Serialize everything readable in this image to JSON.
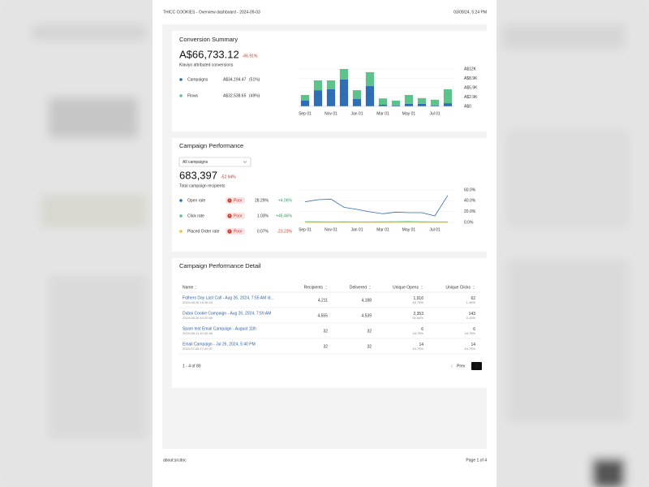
{
  "header": {
    "left": "THICC COOKIES - Overview dashboard - 2024-09-03",
    "right": "03/09/24, 5:24 PM"
  },
  "conversion_summary": {
    "title": "Conversion Summary",
    "total": "A$66,733.12",
    "change": "-66.91%",
    "subtitle": "Klaviyo attributed conversions",
    "chart_data": {
      "type": "bar",
      "stacked": true,
      "categories": [
        "Sep 01",
        null,
        "Nov 01",
        null,
        "Jan 01",
        null,
        "Mar 01",
        null,
        "May 01",
        null,
        "Jul 01",
        null
      ],
      "series": [
        {
          "name": "Campaigns",
          "total": "A$34,194.47",
          "share": "(51%)",
          "color": "#2f6db5",
          "values": [
            1800,
            5100,
            5400,
            8500,
            2300,
            6400,
            500,
            300,
            800,
            800,
            300,
            1000
          ]
        },
        {
          "name": "Flows",
          "total": "A$32,538.65",
          "share": "(49%)",
          "color": "#5cc38a",
          "values": [
            1800,
            3100,
            2800,
            3300,
            2800,
            4400,
            2000,
            1500,
            2800,
            1800,
            1800,
            4400
          ]
        }
      ],
      "ylim": [
        0,
        11800
      ],
      "yticks": [
        {
          "value": 0,
          "label": "A$0"
        },
        {
          "value": 2950,
          "label": "A$2.9K"
        },
        {
          "value": 5900,
          "label": "A$5.9K"
        },
        {
          "value": 8850,
          "label": "A$8.9K"
        },
        {
          "value": 11800,
          "label": "A$12K"
        }
      ],
      "grid": true
    }
  },
  "campaign_performance": {
    "title": "Campaign Performance",
    "filter": "All campaigns",
    "total": "683,397",
    "change": "-52.94%",
    "subtitle": "Total campaign recipients",
    "chart_data": {
      "type": "line",
      "categories": [
        "Sep 01",
        null,
        "Nov 01",
        null,
        "Jan 01",
        null,
        "Mar 01",
        null,
        "May 01",
        null,
        "Jul 01",
        null
      ],
      "series": [
        {
          "name": "Open rate",
          "status": "Poor",
          "rate": "28.29%",
          "change": "+4.06%",
          "color": "#2f6db5",
          "values": [
            38,
            42,
            43,
            28,
            24,
            19.5,
            16,
            19,
            18,
            18,
            12,
            50
          ]
        },
        {
          "name": "Click rate",
          "status": "Poor",
          "rate": "1.03%",
          "change": "+46.46%",
          "color": "#5cc38a",
          "values": [
            1.5,
            1.2,
            1.0,
            1.3,
            1.1,
            1.0,
            1.2,
            1.5,
            1.8,
            1.2,
            1.0,
            1.0
          ]
        },
        {
          "name": "Placed Order rate",
          "status": "Poor",
          "rate": "0.07%",
          "change": "-23.23%",
          "color": "#f1c232",
          "values": [
            0.1,
            0.1,
            0.1,
            0.1,
            0.1,
            0.1,
            0.1,
            0.1,
            0.1,
            0.1,
            0.1,
            0.1
          ]
        }
      ],
      "ylim": [
        0,
        60
      ],
      "yticks": [
        {
          "value": 0,
          "label": "0.0%"
        },
        {
          "value": 20,
          "label": "20.0%"
        },
        {
          "value": 40,
          "label": "40.0%"
        },
        {
          "value": 60,
          "label": "60.0%"
        }
      ],
      "grid": true
    }
  },
  "detail": {
    "title": "Campaign Performance Detail",
    "columns": [
      "Name",
      "Recipients",
      "Delivered",
      "Unique Opens",
      "Unique Clicks"
    ],
    "rows": [
      [
        "Fathers Day Last Call - Aug 26, 2024, 7:55 AM id...",
        "2024-08-26 10:36:10",
        "4,211",
        "4,188",
        "1,916",
        "45.75%",
        "62",
        "1.48%"
      ],
      [
        "Dubai Cookie Campaign - Aug 26, 2024, 7:59 AM",
        "2024-08-26 10:20:40",
        "4,555",
        "4,539",
        "2,353",
        "51.84%",
        "143",
        "3.15%"
      ],
      [
        "Spam test Email Campaign - August 11th",
        "2024-08-11 10:42:48",
        "32",
        "32",
        "6",
        "18.75%",
        "6",
        "18.75%"
      ],
      [
        "Email Campaign - Jul 26, 2024, 5:40 PM",
        "2024-07-26 17:42:37",
        "32",
        "32",
        "14",
        "43.75%",
        "14",
        "43.75%"
      ]
    ],
    "pagination": {
      "summary": "1 - 4 of 80",
      "prev": "Prev",
      "page": "1"
    }
  },
  "footer": {
    "left": "about:srcdoc",
    "right": "Page 1 of 4"
  }
}
